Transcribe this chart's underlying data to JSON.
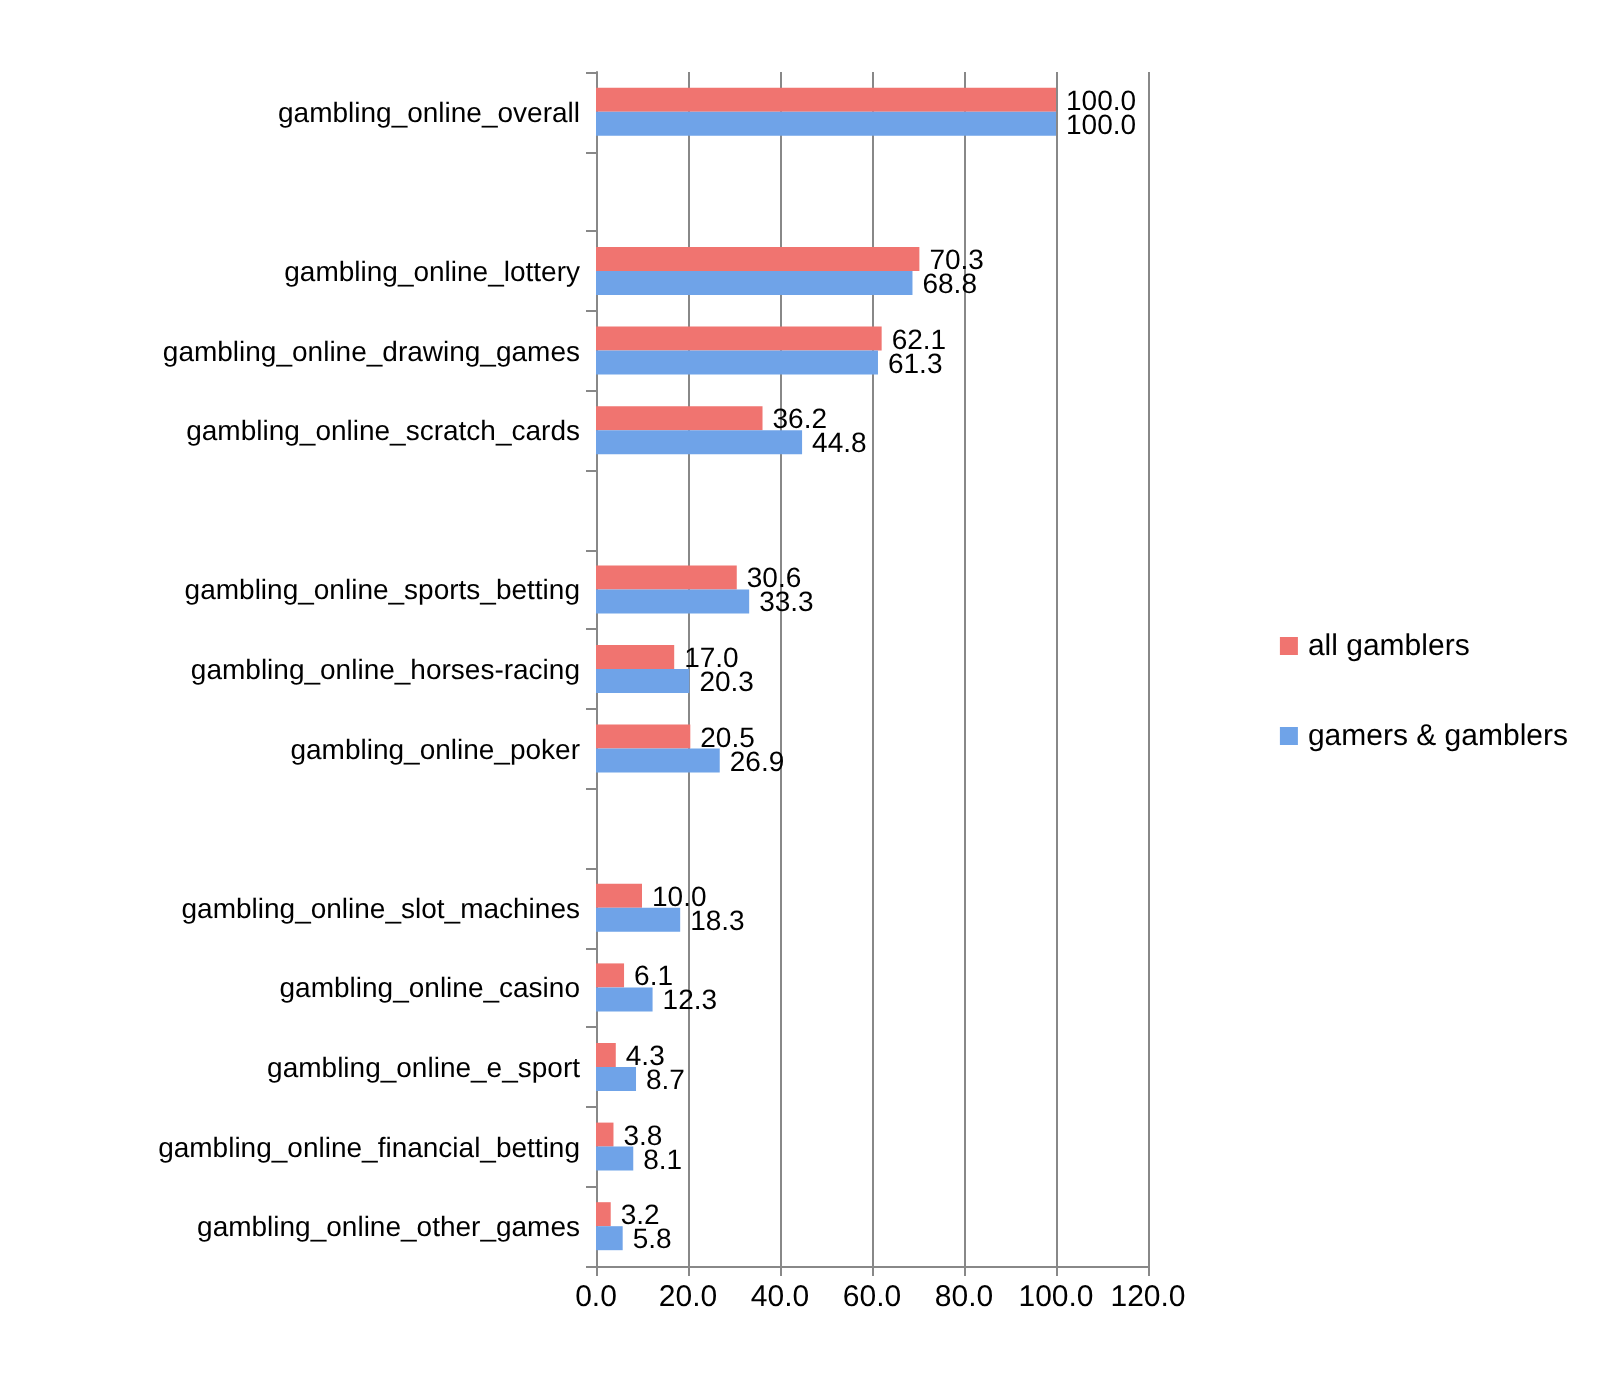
{
  "chart_data": {
    "type": "bar",
    "orientation": "horizontal",
    "categories": [
      "gambling_online_overall",
      null,
      "gambling_online_lottery",
      "gambling_online_drawing_games",
      "gambling_online_scratch_cards",
      null,
      "gambling_online_sports_betting",
      "gambling_online_horses-racing",
      "gambling_online_poker",
      null,
      "gambling_online_slot_machines",
      "gambling_online_casino",
      "gambling_online_e_sport",
      "gambling_online_financial_betting",
      "gambling_online_other_games"
    ],
    "series": [
      {
        "name": "all gamblers",
        "color": "#f07470",
        "values": [
          100.0,
          null,
          70.3,
          62.1,
          36.2,
          null,
          30.6,
          17.0,
          20.5,
          null,
          10.0,
          6.1,
          4.3,
          3.8,
          3.2
        ],
        "value_labels": [
          "100.0",
          null,
          "70.3",
          "62.1",
          "36.2",
          null,
          "30.6",
          "17.0",
          "20.5",
          null,
          "10.0",
          "6.1",
          "4.3",
          "3.8",
          "3.2"
        ]
      },
      {
        "name": "gamers & gamblers",
        "color": "#6fa3e8",
        "values": [
          100.0,
          null,
          68.8,
          61.3,
          44.8,
          null,
          33.3,
          20.3,
          26.9,
          null,
          18.3,
          12.3,
          8.7,
          8.1,
          5.8
        ],
        "value_labels": [
          "100.0",
          null,
          "68.8",
          "61.3",
          "44.8",
          null,
          "33.3",
          "20.3",
          "26.9",
          null,
          "18.3",
          "12.3",
          "8.7",
          "8.1",
          "5.8"
        ]
      }
    ],
    "xlim": [
      0,
      120
    ],
    "xticks": [
      {
        "value": 0,
        "label": "0.0"
      },
      {
        "value": 20,
        "label": "20.0"
      },
      {
        "value": 40,
        "label": "40.0"
      },
      {
        "value": 60,
        "label": "60.0"
      },
      {
        "value": 80,
        "label": "80.0"
      },
      {
        "value": 100,
        "label": "100.0"
      },
      {
        "value": 120,
        "label": "120.0"
      }
    ],
    "grid": "x",
    "legend": "right"
  }
}
